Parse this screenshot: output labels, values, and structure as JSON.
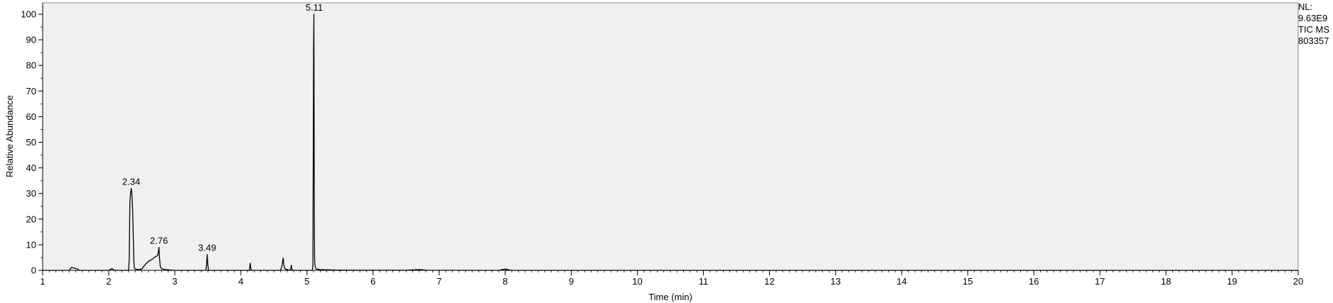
{
  "chart_data": {
    "type": "line",
    "xlabel": "Time (min)",
    "ylabel": "Relative Abundance",
    "xlim": [
      1,
      20
    ],
    "ylim": [
      0,
      100
    ],
    "xticks": [
      1,
      2,
      3,
      4,
      5,
      6,
      7,
      8,
      9,
      10,
      11,
      12,
      13,
      14,
      15,
      16,
      17,
      18,
      19,
      20
    ],
    "yticks": [
      0,
      10,
      20,
      30,
      40,
      50,
      60,
      70,
      80,
      90,
      100
    ],
    "grid": false,
    "plot_background": "#f0f0f0",
    "line_color": "#000000",
    "peak_labels": [
      {
        "x": 2.34,
        "y": 32,
        "text": "2.34"
      },
      {
        "x": 2.76,
        "y": 9,
        "text": "2.76"
      },
      {
        "x": 3.49,
        "y": 6.2,
        "text": "3.49"
      },
      {
        "x": 5.11,
        "y": 100,
        "text": "5.11"
      }
    ],
    "series": [
      {
        "x": [
          1.0,
          1.4,
          1.44,
          1.47,
          1.52,
          1.56,
          2.0,
          2.05,
          2.07,
          2.1,
          2.3,
          2.31,
          2.315,
          2.32,
          2.33,
          2.34,
          2.35,
          2.36,
          2.37,
          2.38,
          2.385,
          2.39,
          2.4,
          2.45,
          2.5,
          2.55,
          2.6,
          2.65,
          2.7,
          2.72,
          2.74,
          2.75,
          2.76,
          2.77,
          2.78,
          2.8,
          2.85,
          2.9,
          3.0,
          3.47,
          3.48,
          3.49,
          3.5,
          3.51,
          4.13,
          4.14,
          4.15,
          4.16,
          4.6,
          4.62,
          4.63,
          4.64,
          4.65,
          4.67,
          4.75,
          4.76,
          4.765,
          4.77,
          4.78,
          5.07,
          5.08,
          5.09,
          5.1,
          5.105,
          5.11,
          5.115,
          5.12,
          5.13,
          5.14,
          5.2,
          5.3,
          5.5,
          6.0,
          6.5,
          6.7,
          6.75,
          6.8,
          7.9,
          8.0,
          8.1,
          9,
          10,
          11,
          12,
          13,
          14,
          15,
          16,
          17,
          18,
          19,
          20
        ],
        "y": [
          0,
          0,
          1.2,
          0.9,
          0.6,
          0,
          0,
          0.7,
          0.3,
          0,
          0,
          4,
          15,
          26,
          30,
          32,
          30,
          25,
          15,
          4,
          1.5,
          1,
          0.5,
          0.3,
          0.5,
          2.2,
          3.5,
          4.2,
          5.2,
          5.5,
          5.8,
          7,
          9,
          4.5,
          1.5,
          0.6,
          0.3,
          0.2,
          0,
          0,
          2,
          6.2,
          2,
          0,
          0,
          2.8,
          0.8,
          0,
          0,
          1.5,
          3.3,
          4.8,
          2,
          0.5,
          0,
          1.5,
          2,
          0.8,
          0,
          0,
          0,
          2,
          86,
          100,
          30,
          5,
          2,
          1,
          0.5,
          0.3,
          0.2,
          0.1,
          0.05,
          0.05,
          0.3,
          0.2,
          0.05,
          0,
          0.5,
          0,
          0,
          0,
          0,
          0,
          0,
          0,
          0,
          0,
          0,
          0,
          0,
          0
        ]
      }
    ]
  },
  "info": {
    "nl_label": "NL:",
    "nl_value": "9.63E9",
    "trace": "TIC  MS",
    "file": "803357"
  }
}
